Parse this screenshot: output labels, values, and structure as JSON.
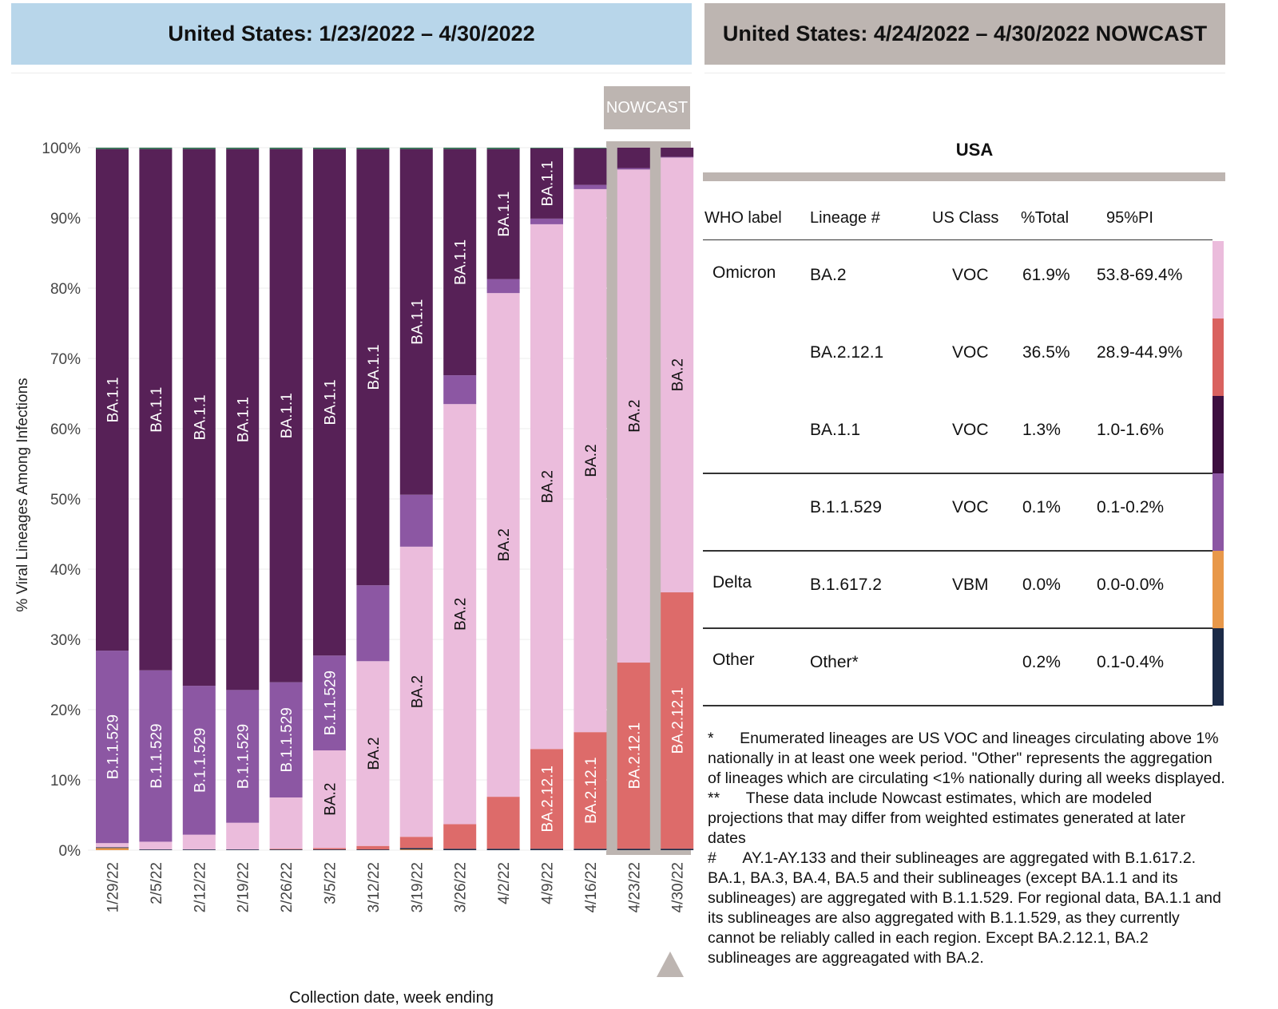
{
  "header_left": "United States: 1/23/2022 – 4/30/2022",
  "header_right": "United States: 4/24/2022 – 4/30/2022 NOWCAST",
  "nowcast_tag": "NOWCAST",
  "chart_data": {
    "type": "bar",
    "stacked": true,
    "ylabel": "% Viral Lineages Among Infections",
    "xlabel": "Collection date, week ending",
    "ylim": [
      0,
      100
    ],
    "yticks": [
      "0%",
      "10%",
      "20%",
      "30%",
      "40%",
      "50%",
      "60%",
      "70%",
      "80%",
      "90%",
      "100%"
    ],
    "categories": [
      "1/29/22",
      "2/5/22",
      "2/12/22",
      "2/19/22",
      "2/26/22",
      "3/5/22",
      "3/12/22",
      "3/19/22",
      "3/26/22",
      "4/2/22",
      "4/9/22",
      "4/16/22",
      "4/23/22",
      "4/30/22"
    ],
    "nowcast_categories": [
      "4/23/22",
      "4/30/22"
    ],
    "series": [
      {
        "name": "Delta B.1.617.2",
        "color": "#e8984a",
        "values": [
          0.3,
          0,
          0,
          0,
          0,
          0,
          0,
          0.1,
          0,
          0,
          0,
          0,
          0,
          0
        ]
      },
      {
        "name": "Other",
        "color": "#1b2a47",
        "values": [
          0.1,
          0.1,
          0.1,
          0.1,
          0.1,
          0.1,
          0.1,
          0.2,
          0.2,
          0.2,
          0.2,
          0.2,
          0.2,
          0.2
        ]
      },
      {
        "name": "BA.2.12.1",
        "color": "#dd6b6a",
        "values": [
          0,
          0,
          0,
          0,
          0.1,
          0.2,
          0.5,
          1.6,
          3.5,
          7.4,
          14.2,
          16.6,
          26.5,
          36.5
        ]
      },
      {
        "name": "BA.2",
        "color": "#ebbcdc",
        "values": [
          0.6,
          1.1,
          2.1,
          3.8,
          7.3,
          13.9,
          26.3,
          41.3,
          59.8,
          71.7,
          74.7,
          77.3,
          70.2,
          61.9
        ]
      },
      {
        "name": "B.1.1.529",
        "color": "#8c57a3",
        "values": [
          27.4,
          24.4,
          21.2,
          18.9,
          16.4,
          13.5,
          10.8,
          7.4,
          4.1,
          2.0,
          0.8,
          0.6,
          0.2,
          0.1
        ]
      },
      {
        "name": "BA.1.1",
        "color": "#572157",
        "values": [
          71.4,
          74.2,
          76.4,
          77.0,
          75.9,
          72.1,
          62.1,
          49.2,
          32.2,
          18.5,
          10.0,
          5.2,
          2.9,
          1.3
        ]
      },
      {
        "name": "Other (top)",
        "color": "#2e6e4f",
        "values": [
          0.2,
          0.2,
          0.2,
          0.2,
          0.2,
          0.2,
          0.2,
          0.2,
          0.2,
          0.2,
          0.1,
          0.1,
          0,
          0
        ]
      }
    ],
    "bar_labels": [
      {
        "series": "BA.1.1",
        "bars": [
          "1/29/22",
          "2/5/22",
          "2/12/22",
          "2/19/22",
          "2/26/22",
          "3/5/22",
          "3/12/22",
          "3/19/22",
          "3/26/22",
          "4/2/22",
          "4/9/22"
        ],
        "text": "BA.1.1"
      },
      {
        "series": "B.1.1.529",
        "bars": [
          "1/29/22",
          "2/5/22",
          "2/12/22",
          "2/19/22",
          "2/26/22",
          "3/5/22"
        ],
        "text": "B.1.1.529"
      },
      {
        "series": "BA.2",
        "bars": [
          "3/5/22",
          "3/12/22",
          "3/19/22",
          "3/26/22",
          "4/2/22",
          "4/9/22",
          "4/16/22",
          "4/23/22",
          "4/30/22"
        ],
        "text": "BA.2"
      },
      {
        "series": "BA.2.12.1",
        "bars": [
          "4/9/22",
          "4/16/22",
          "4/23/22",
          "4/30/22"
        ],
        "text": "BA.2.12.1"
      }
    ]
  },
  "table": {
    "title": "USA",
    "headers": [
      "WHO label",
      "Lineage #",
      "US Class",
      "%Total",
      "95%PI"
    ],
    "rows": [
      {
        "who": "Omicron",
        "lineage": "BA.2",
        "class": "VOC",
        "total": "61.9%",
        "pi": "53.8-69.4%",
        "color": "#ebbcdc"
      },
      {
        "who": "",
        "lineage": "BA.2.12.1",
        "class": "VOC",
        "total": "36.5%",
        "pi": "28.9-44.9%",
        "color": "#d9625f"
      },
      {
        "who": "",
        "lineage": "BA.1.1",
        "class": "VOC",
        "total": "1.3%",
        "pi": "1.0-1.6%",
        "color": "#3d0f40"
      },
      {
        "who": "",
        "lineage": "B.1.1.529",
        "class": "VOC",
        "total": "0.1%",
        "pi": "0.1-0.2%",
        "color": "#8c57a3"
      },
      {
        "who": "Delta",
        "lineage": "B.1.617.2",
        "class": "VBM",
        "total": "0.0%",
        "pi": "0.0-0.0%",
        "color": "#e8984a"
      },
      {
        "who": "Other",
        "lineage": "Other*",
        "class": "",
        "total": "0.2%",
        "pi": "0.1-0.4%",
        "color": "#1b2a47"
      }
    ]
  },
  "notes": {
    "n1_mark": "*",
    "n1": "Enumerated lineages are US VOC and lineages circulating above 1% nationally in at least one week period. \"Other\" represents the aggregation of lineages which are circulating <1% nationally during all weeks displayed.",
    "n2_mark": "**",
    "n2": "These data include Nowcast estimates, which are modeled projections that may differ from weighted estimates generated at later dates",
    "n3_mark": "#",
    "n3": "AY.1-AY.133 and their sublineages are aggregated with B.1.617.2. BA.1, BA.3, BA.4, BA.5 and their sublineages (except BA.1.1 and its sublineages) are aggregated with B.1.1.529. For regional data, BA.1.1 and its sublineages are also aggregated with B.1.1.529, as they currently cannot be reliably called in each region. Except BA.2.12.1, BA.2 sublineages are aggreagated with BA.2."
  }
}
